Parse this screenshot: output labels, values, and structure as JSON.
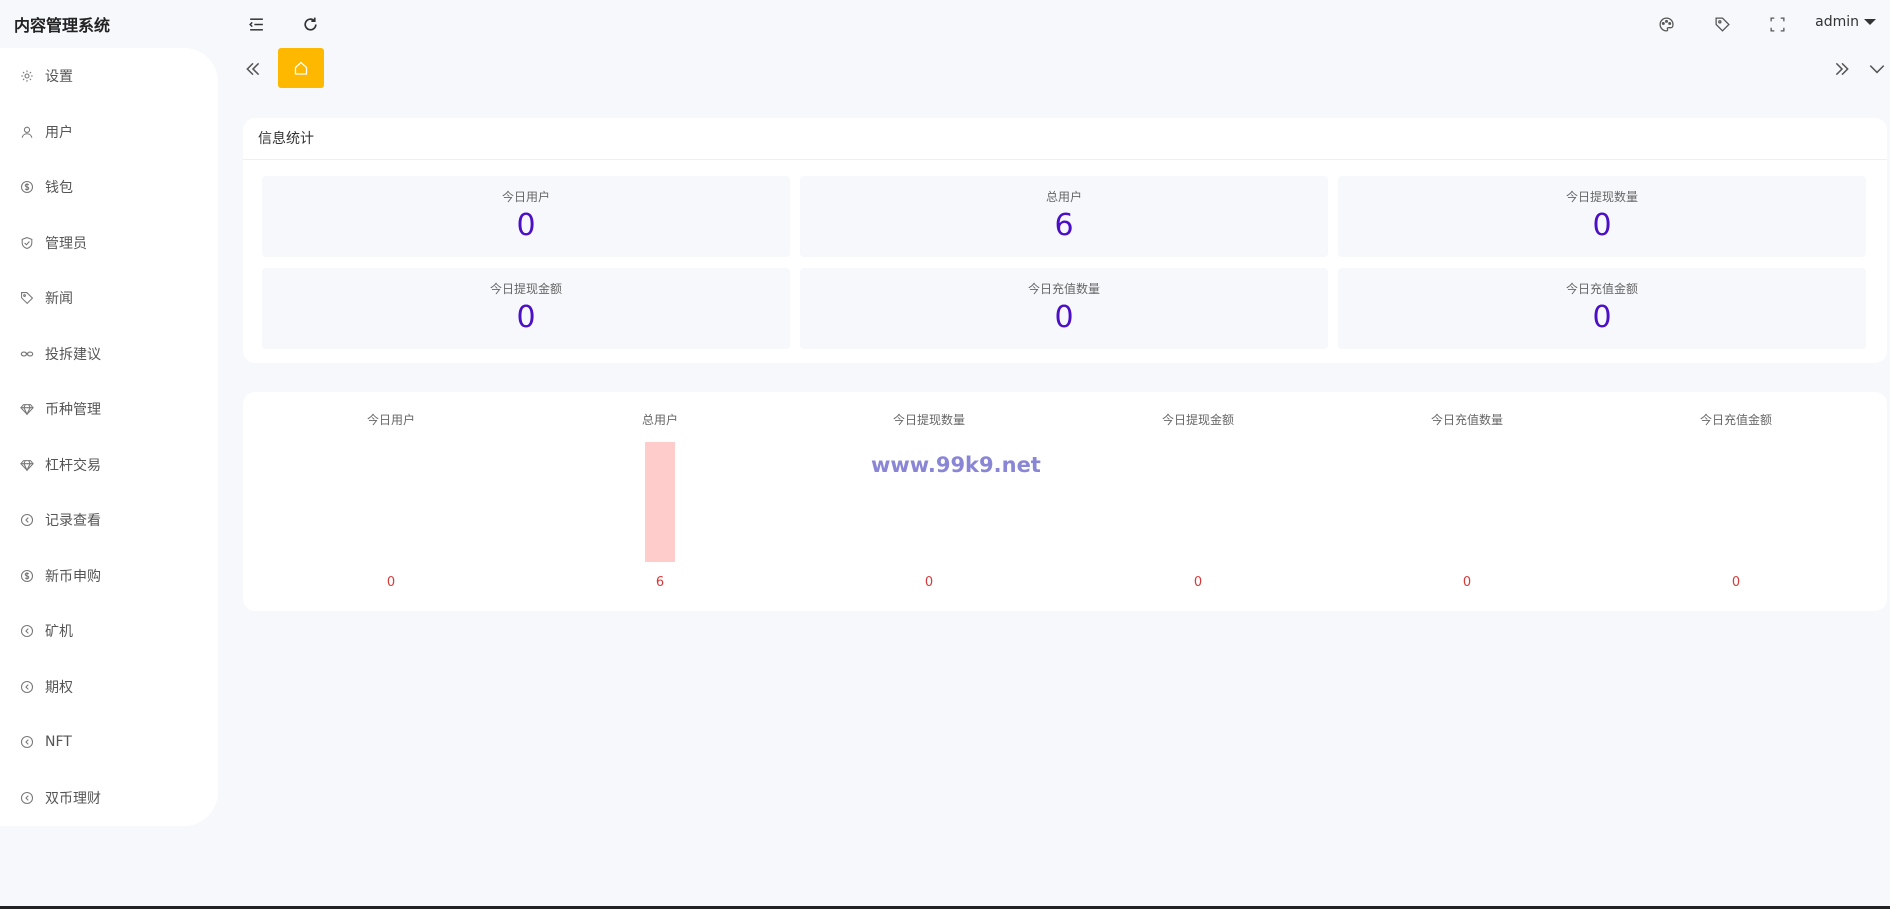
{
  "app": {
    "title": "内容管理系统"
  },
  "header": {
    "user": "admin"
  },
  "sidebar": {
    "items": [
      {
        "label": "设置",
        "icon": "gear-icon"
      },
      {
        "label": "用户",
        "icon": "user-icon"
      },
      {
        "label": "钱包",
        "icon": "dollar-icon"
      },
      {
        "label": "管理员",
        "icon": "shield-icon"
      },
      {
        "label": "新闻",
        "icon": "tag-icon"
      },
      {
        "label": "投拆建议",
        "icon": "link-icon"
      },
      {
        "label": "币种管理",
        "icon": "diamond-icon"
      },
      {
        "label": "杠杆交易",
        "icon": "diamond-icon"
      },
      {
        "label": "记录查看",
        "icon": "circle-arrow-icon"
      },
      {
        "label": "新币申购",
        "icon": "dollar-icon"
      },
      {
        "label": "矿机",
        "icon": "circle-arrow-icon"
      },
      {
        "label": "期权",
        "icon": "circle-arrow-icon"
      },
      {
        "label": "NFT",
        "icon": "circle-arrow-icon"
      },
      {
        "label": "双币理财",
        "icon": "circle-arrow-icon"
      }
    ]
  },
  "stats": {
    "title": "信息统计",
    "items": [
      {
        "label": "今日用户",
        "value": "0"
      },
      {
        "label": "总用户",
        "value": "6"
      },
      {
        "label": "今日提现数量",
        "value": "0"
      },
      {
        "label": "今日提现金额",
        "value": "0"
      },
      {
        "label": "今日充值数量",
        "value": "0"
      },
      {
        "label": "今日充值金额",
        "value": "0"
      }
    ]
  },
  "watermark": "www.99k9.net",
  "colors": {
    "accent": "#ffb800",
    "value": "#4b0fc6",
    "bar": "#ffcccc",
    "bar_label": "#d53a3a"
  },
  "chart_data": {
    "type": "bar",
    "categories": [
      "今日用户",
      "总用户",
      "今日提现数量",
      "今日提现金额",
      "今日充值数量",
      "今日充值金额"
    ],
    "values": [
      0,
      6,
      0,
      0,
      0,
      0
    ],
    "title": "",
    "xlabel": "",
    "ylabel": "",
    "ylim": [
      0,
      6
    ],
    "grid": false
  }
}
